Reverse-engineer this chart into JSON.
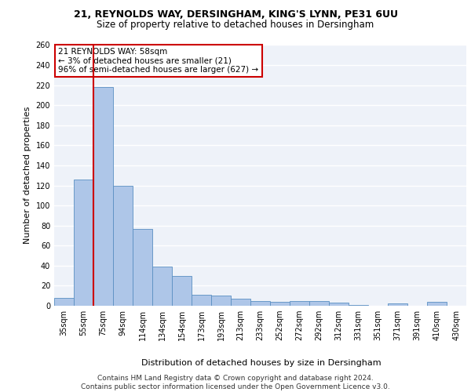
{
  "title_line1": "21, REYNOLDS WAY, DERSINGHAM, KING'S LYNN, PE31 6UU",
  "title_line2": "Size of property relative to detached houses in Dersingham",
  "xlabel": "Distribution of detached houses by size in Dersingham",
  "ylabel": "Number of detached properties",
  "footer_line1": "Contains HM Land Registry data © Crown copyright and database right 2024.",
  "footer_line2": "Contains public sector information licensed under the Open Government Licence v3.0.",
  "annotation_line1": "21 REYNOLDS WAY: 58sqm",
  "annotation_line2": "← 3% of detached houses are smaller (21)",
  "annotation_line3": "96% of semi-detached houses are larger (627) →",
  "bar_color": "#aec6e8",
  "bar_edge_color": "#5a8fc2",
  "ref_line_color": "#cc0000",
  "categories": [
    "35sqm",
    "55sqm",
    "75sqm",
    "94sqm",
    "114sqm",
    "134sqm",
    "154sqm",
    "173sqm",
    "193sqm",
    "213sqm",
    "233sqm",
    "252sqm",
    "272sqm",
    "292sqm",
    "312sqm",
    "331sqm",
    "351sqm",
    "371sqm",
    "391sqm",
    "410sqm",
    "430sqm"
  ],
  "values": [
    8,
    126,
    218,
    120,
    77,
    39,
    30,
    11,
    10,
    7,
    5,
    4,
    5,
    5,
    3,
    1,
    0,
    2,
    0,
    4,
    0
  ],
  "ylim": [
    0,
    260
  ],
  "yticks": [
    0,
    20,
    40,
    60,
    80,
    100,
    120,
    140,
    160,
    180,
    200,
    220,
    240,
    260
  ],
  "background_color": "#eef2f9",
  "grid_color": "#ffffff",
  "title_fontsize": 9,
  "subtitle_fontsize": 8.5,
  "axis_label_fontsize": 8,
  "tick_fontsize": 7,
  "annotation_fontsize": 7.5,
  "footer_fontsize": 6.5
}
